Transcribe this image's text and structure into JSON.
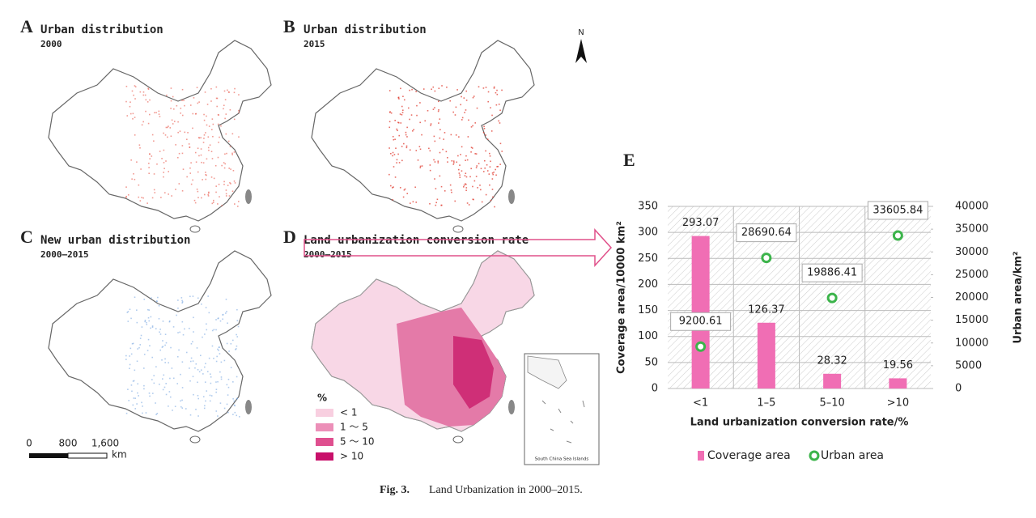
{
  "panels": [
    {
      "letter": "A",
      "title": "Urban distribution",
      "period": "2000"
    },
    {
      "letter": "B",
      "title": "Urban distribution",
      "period": "2015"
    },
    {
      "letter": "C",
      "title": "New urban distribution",
      "period": "2000–2015"
    },
    {
      "letter": "D",
      "title": "Land urbanization conversion rate",
      "period": "2000–2015"
    }
  ],
  "north": "N",
  "legend": {
    "unit": "%",
    "items": [
      "< 1",
      "1 ～ 5",
      "5 ～ 10",
      "> 10"
    ]
  },
  "scale_bar": {
    "labels": [
      "0",
      "800",
      "1,600"
    ],
    "unit": "km"
  },
  "inset": "South China Sea Islands",
  "caption": {
    "label": "Fig. 3.",
    "text": "Land Urbanization in 2000–2015."
  },
  "chart_data": {
    "type": "bar",
    "letter": "E",
    "categories": [
      "<1",
      "1–5",
      "5–10",
      ">10"
    ],
    "xlabel": "Land urbanization conversion rate/%",
    "ylabel": "Coverage area/10000 km²",
    "y2label": "Urban area/km²",
    "ylim": [
      0,
      350
    ],
    "yticks": [
      0,
      50,
      100,
      150,
      200,
      250,
      300,
      350
    ],
    "y2lim": [
      0,
      40000
    ],
    "y2ticks": [
      0,
      5000,
      10000,
      15000,
      20000,
      25000,
      30000,
      35000,
      40000
    ],
    "grid": true,
    "series": [
      {
        "name": "Coverage area",
        "type": "bar",
        "color": "#f06eb4",
        "values": [
          293.07,
          126.37,
          28.32,
          19.56
        ]
      },
      {
        "name": "Urban area",
        "type": "scatter",
        "axis": "y2",
        "color": "#3cb44b",
        "values": [
          9200.61,
          28690.64,
          19886.41,
          33605.84
        ]
      }
    ]
  }
}
